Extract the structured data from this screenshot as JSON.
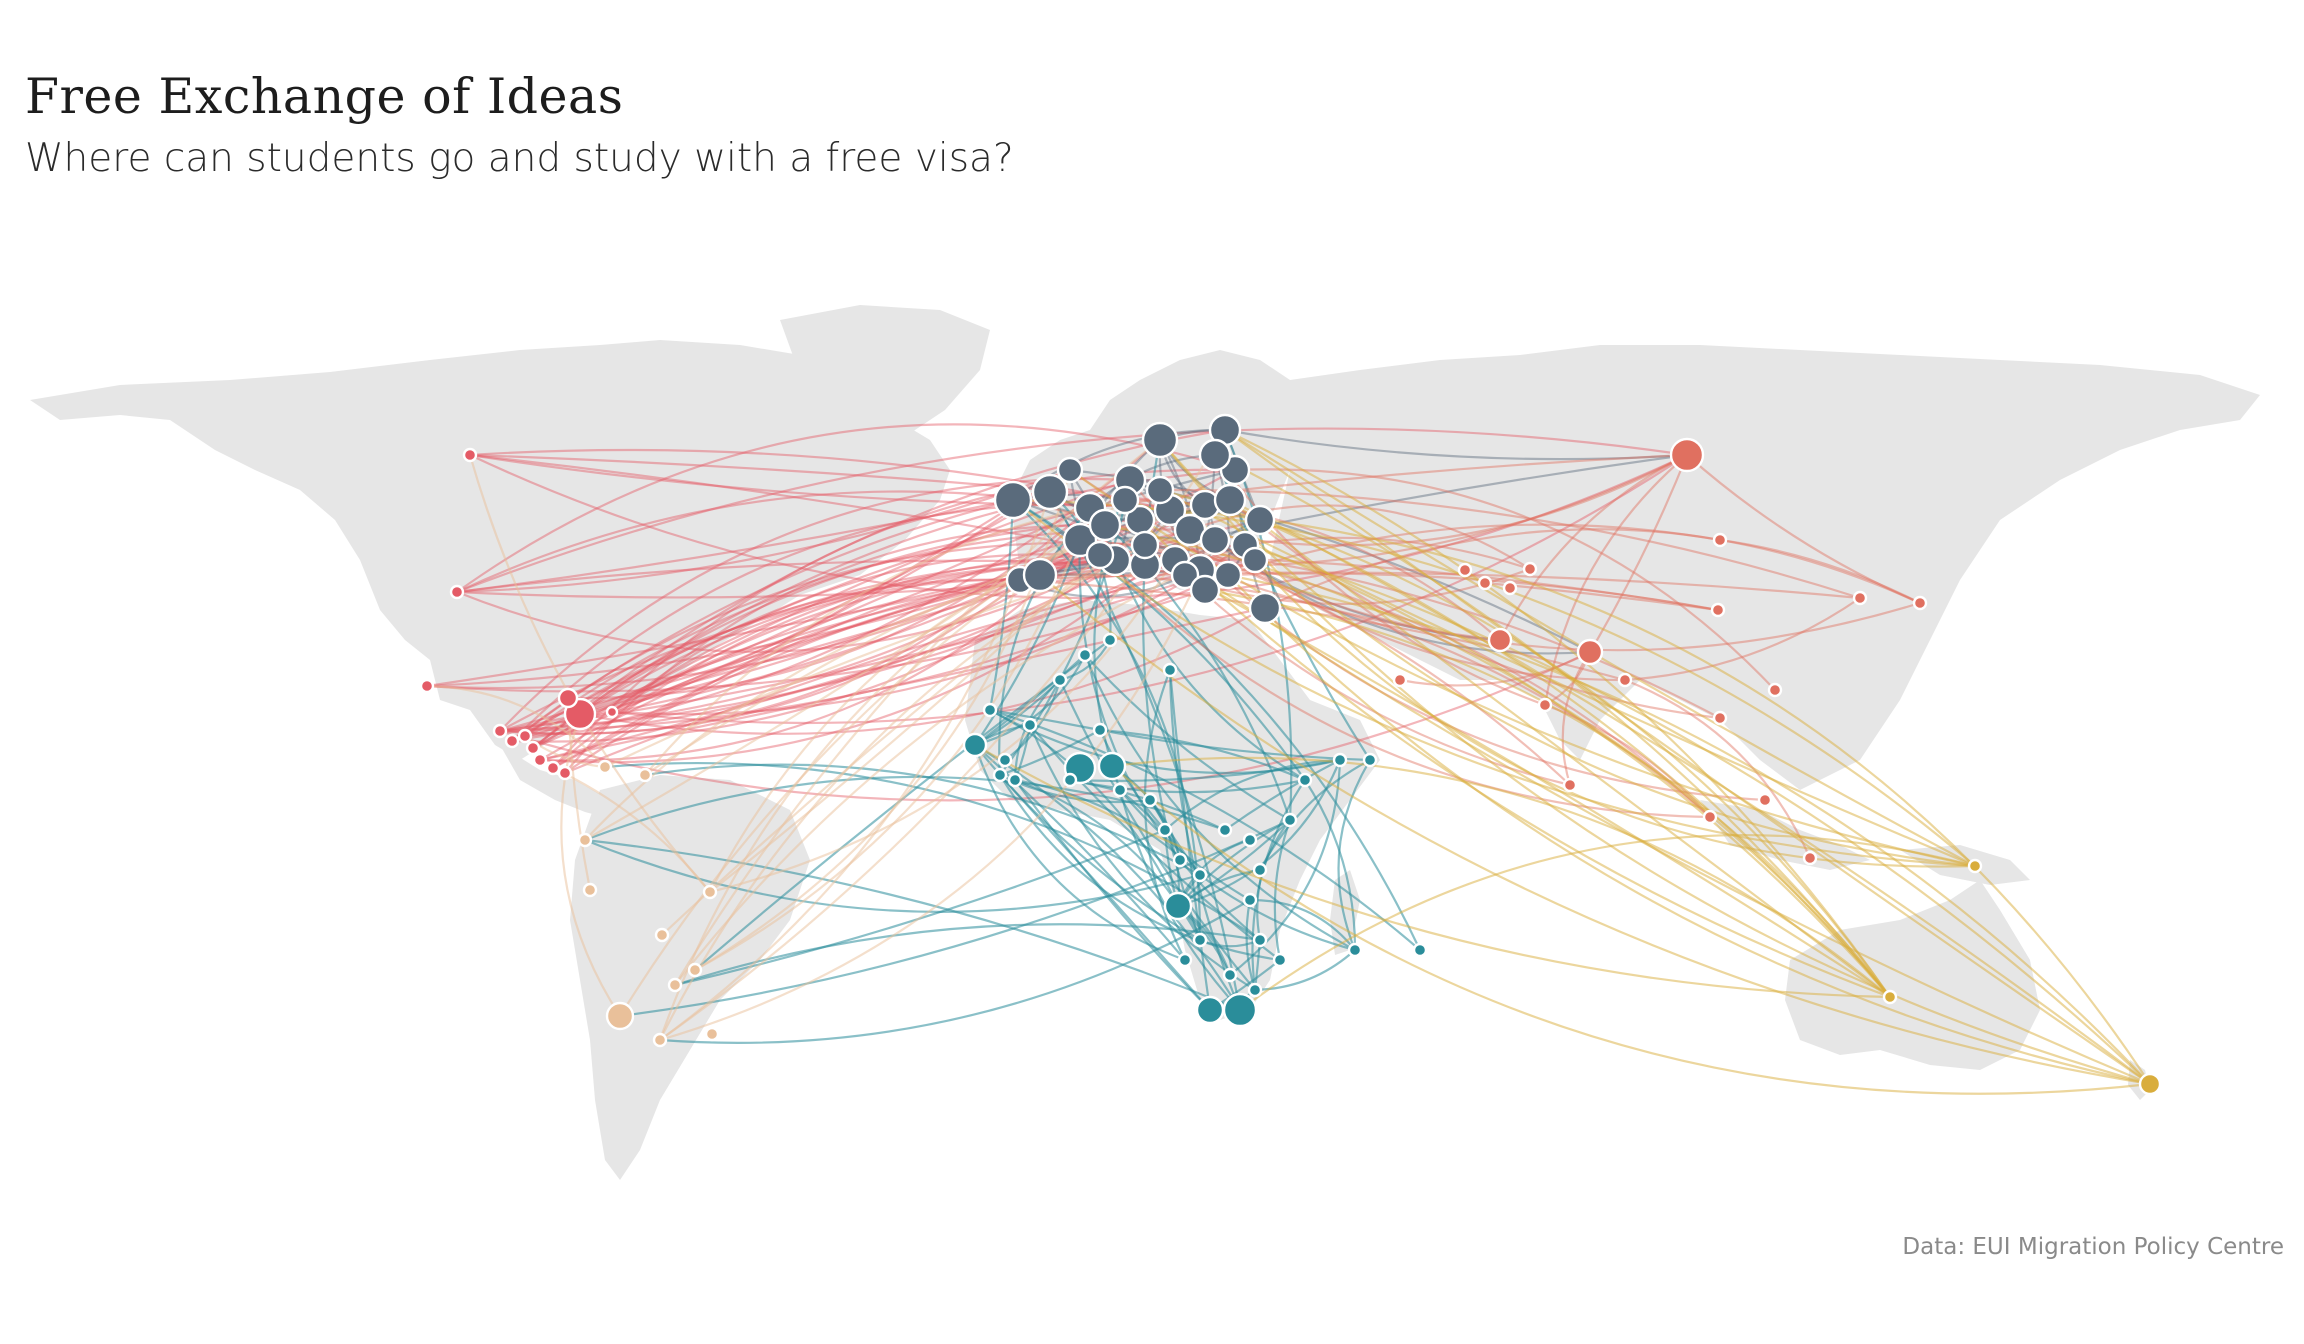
{
  "title": "Free Exchange of Ideas",
  "subtitle": "Where can students go and study with a free visa?",
  "credit": "Data: EUI Migration Policy Centre",
  "colors": {
    "land": "#e6e6e6",
    "europe": "#5a6b7c",
    "north_america": "#e45b66",
    "africa": "#2a8d9a",
    "south_america": "#e9c09a",
    "asia": "#e07060",
    "oceania": "#d9ad3c"
  }
}
